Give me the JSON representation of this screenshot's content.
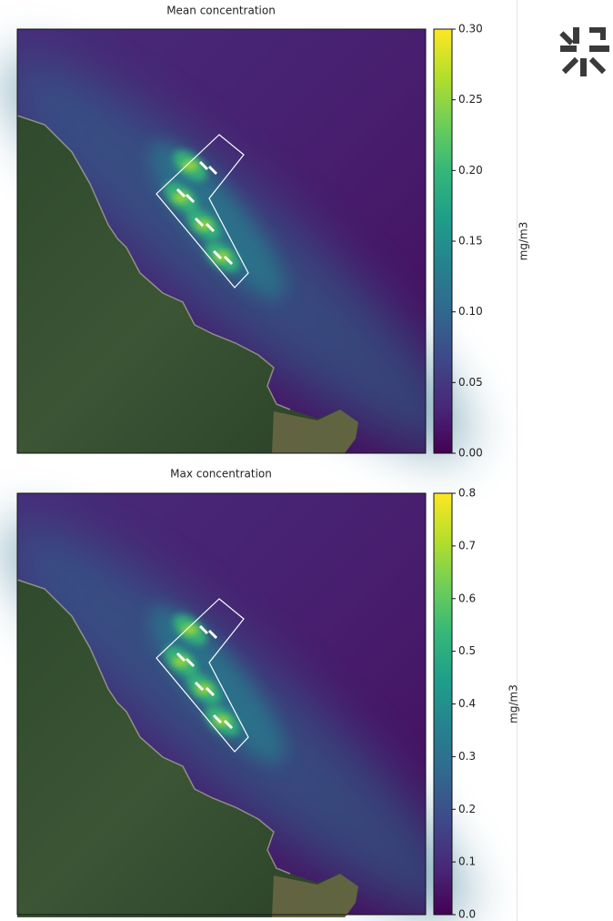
{
  "chart_data": [
    {
      "type": "heatmap",
      "title": "Mean concentration",
      "colorbar_label": "mg/m3",
      "colormap": "viridis",
      "clim": [
        0,
        0.3
      ],
      "cticks": [
        {
          "value": 0,
          "label": "0.00"
        },
        0.05,
        {
          "value": 0.1,
          "label": "0.10"
        },
        0.15,
        {
          "value": 0.2,
          "label": "0.20"
        },
        0.25,
        {
          "value": 0.3,
          "label": "0.30"
        }
      ]
    },
    {
      "type": "heatmap",
      "title": "Max concentration",
      "colorbar_label": "mg/m3",
      "colormap": "viridis",
      "clim": [
        0,
        0.8
      ],
      "cticks": [
        {
          "value": 0,
          "label": "0.0"
        },
        0.1,
        0.2,
        0.3,
        0.4,
        0.5,
        0.6,
        0.7,
        0.8
      ]
    }
  ]
}
